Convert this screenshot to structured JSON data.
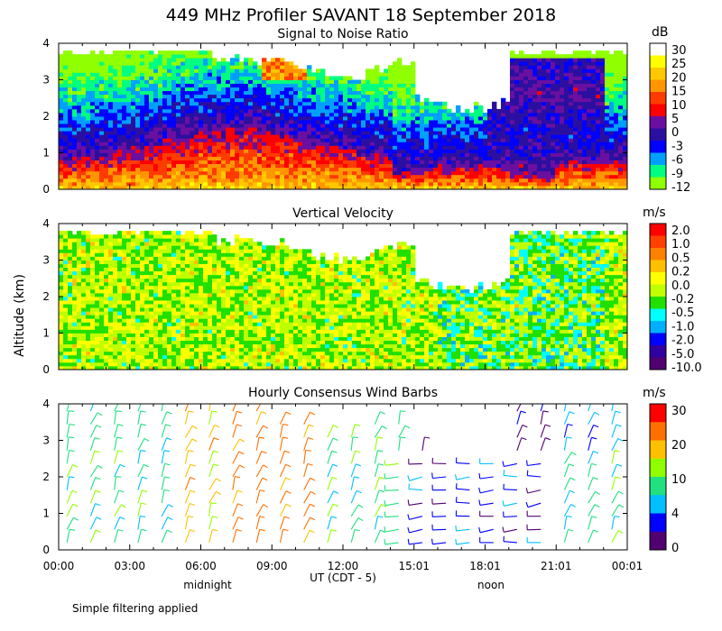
{
  "title": "449 MHz Profiler SAVANT 18 September 2018",
  "y_axis_label": "Altitude (km)",
  "x_axis": {
    "label": "UT  (CDT - 5)",
    "ticks": [
      "00:00",
      "03:00",
      "06:00",
      "09:00",
      "12:00",
      "15:01",
      "18:01",
      "21:01",
      "00:01"
    ],
    "local_labels": [
      "midnight",
      "noon"
    ]
  },
  "footnote": "Simple filtering applied",
  "colors": {
    "white_above": "#ffffff"
  },
  "chart_data": [
    {
      "type": "heatmap",
      "title": "Signal to Noise Ratio",
      "ylabel": "Altitude (km)",
      "xlabel": "UT  (CDT - 5)",
      "ylim": [
        0,
        4
      ],
      "yticks": [
        "0",
        "1",
        "2",
        "3",
        "4"
      ],
      "xlim_hours": [
        0,
        24
      ],
      "colorbar_unit": "dB",
      "colorbar_labels": [
        "30",
        "25",
        "20",
        "15",
        "10",
        "5",
        "0",
        "-3",
        "-6",
        "-9",
        "-12"
      ],
      "colorbar_colors": [
        "#ffffff",
        "#ffff00",
        "#ffc800",
        "#ff9600",
        "#ff3c00",
        "#ff0000",
        "#6a0fa0",
        "#2b0fa0",
        "#0000ff",
        "#00a0ff",
        "#00ff80",
        "#90ff00"
      ]
    },
    {
      "type": "heatmap",
      "title": "Vertical Velocity",
      "ylabel": "Altitude (km)",
      "xlabel": "UT  (CDT - 5)",
      "ylim": [
        0,
        4
      ],
      "yticks": [
        "0",
        "1",
        "2",
        "3",
        "4"
      ],
      "xlim_hours": [
        0,
        24
      ],
      "colorbar_unit": "m/s",
      "colorbar_labels": [
        "2.0",
        "1.0",
        "0.5",
        "0.2",
        "0.0",
        "-0.2",
        "-0.5",
        "-1.0",
        "-2.0",
        "-5.0",
        "-10.0"
      ],
      "colorbar_colors": [
        "#ff0000",
        "#ff4000",
        "#ff8000",
        "#ffc000",
        "#ffff00",
        "#c0ff00",
        "#20e000",
        "#00ffff",
        "#00b0ff",
        "#0000ff",
        "#3000a0",
        "#500070"
      ]
    },
    {
      "type": "scatter",
      "title": "Hourly Consensus Wind Barbs",
      "ylabel": "Altitude (km)",
      "xlabel": "UT  (CDT - 5)",
      "ylim": [
        0,
        4
      ],
      "yticks": [
        "0",
        "1",
        "2",
        "3",
        "4"
      ],
      "xlim_hours": [
        0,
        24
      ],
      "colorbar_unit": "m/s",
      "colorbar_labels": [
        "30",
        "20",
        "10",
        "4",
        "0"
      ],
      "colorbar_colors": [
        "#ff0000",
        "#ff7000",
        "#ffc000",
        "#90ff00",
        "#20e080",
        "#00c0ff",
        "#0000ff",
        "#500070"
      ]
    }
  ]
}
